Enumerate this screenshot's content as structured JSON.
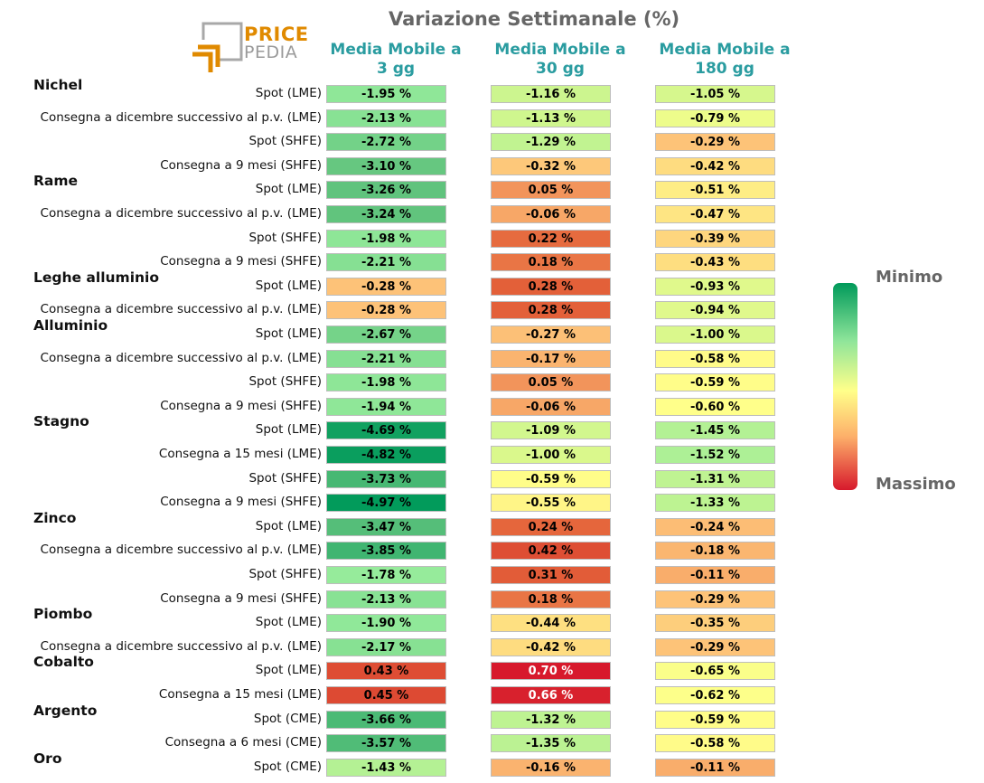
{
  "chart_data": {
    "type": "table",
    "title": "Variazione Settimanale (%)",
    "columns": [
      "Media Mobile a\n3 gg",
      "Media Mobile a\n30 gg",
      "Media Mobile a\n180 gg"
    ],
    "color_scale": {
      "min_label": "Minimo",
      "max_label": "Massimo",
      "low_color": "#009a5a",
      "mid_color": "#ffff8a",
      "high_color": "#d7192c"
    },
    "groups": [
      {
        "name": "Nichel",
        "rows": [
          {
            "label": "Spot (LME)",
            "values": [
              -1.95,
              -1.16,
              -1.05
            ]
          },
          {
            "label": "Consegna a dicembre successivo al p.v. (LME)",
            "values": [
              -2.13,
              -1.13,
              -0.79
            ]
          },
          {
            "label": "Spot (SHFE)",
            "values": [
              -2.72,
              -1.29,
              -0.29
            ]
          },
          {
            "label": "Consegna a 9 mesi (SHFE)",
            "values": [
              -3.1,
              -0.32,
              -0.42
            ]
          }
        ]
      },
      {
        "name": "Rame",
        "rows": [
          {
            "label": "Spot (LME)",
            "values": [
              -3.26,
              0.05,
              -0.51
            ]
          },
          {
            "label": "Consegna a dicembre successivo al p.v. (LME)",
            "values": [
              -3.24,
              -0.06,
              -0.47
            ]
          },
          {
            "label": "Spot (SHFE)",
            "values": [
              -1.98,
              0.22,
              -0.39
            ]
          },
          {
            "label": "Consegna a 9 mesi (SHFE)",
            "values": [
              -2.21,
              0.18,
              -0.43
            ]
          }
        ]
      },
      {
        "name": "Leghe alluminio",
        "rows": [
          {
            "label": "Spot (LME)",
            "values": [
              -0.28,
              0.28,
              -0.93
            ]
          },
          {
            "label": "Consegna a dicembre successivo al p.v. (LME)",
            "values": [
              -0.28,
              0.28,
              -0.94
            ]
          }
        ]
      },
      {
        "name": "Alluminio",
        "rows": [
          {
            "label": "Spot (LME)",
            "values": [
              -2.67,
              -0.27,
              -1.0
            ]
          },
          {
            "label": "Consegna a dicembre successivo al p.v. (LME)",
            "values": [
              -2.21,
              -0.17,
              -0.58
            ]
          },
          {
            "label": "Spot (SHFE)",
            "values": [
              -1.98,
              0.05,
              -0.59
            ]
          },
          {
            "label": "Consegna a 9 mesi (SHFE)",
            "values": [
              -1.94,
              -0.06,
              -0.6
            ]
          }
        ]
      },
      {
        "name": "Stagno",
        "rows": [
          {
            "label": "Spot (LME)",
            "values": [
              -4.69,
              -1.09,
              -1.45
            ]
          },
          {
            "label": "Consegna a 15 mesi (LME)",
            "values": [
              -4.82,
              -1.0,
              -1.52
            ]
          },
          {
            "label": "Spot (SHFE)",
            "values": [
              -3.73,
              -0.59,
              -1.31
            ]
          },
          {
            "label": "Consegna a 9 mesi (SHFE)",
            "values": [
              -4.97,
              -0.55,
              -1.33
            ]
          }
        ]
      },
      {
        "name": "Zinco",
        "rows": [
          {
            "label": "Spot (LME)",
            "values": [
              -3.47,
              0.24,
              -0.24
            ]
          },
          {
            "label": "Consegna a dicembre successivo al p.v. (LME)",
            "values": [
              -3.85,
              0.42,
              -0.18
            ]
          },
          {
            "label": "Spot (SHFE)",
            "values": [
              -1.78,
              0.31,
              -0.11
            ]
          },
          {
            "label": "Consegna a 9 mesi (SHFE)",
            "values": [
              -2.13,
              0.18,
              -0.29
            ]
          }
        ]
      },
      {
        "name": "Piombo",
        "rows": [
          {
            "label": "Spot (LME)",
            "values": [
              -1.9,
              -0.44,
              -0.35
            ]
          },
          {
            "label": "Consegna a dicembre successivo al p.v. (LME)",
            "values": [
              -2.17,
              -0.42,
              -0.29
            ]
          }
        ]
      },
      {
        "name": "Cobalto",
        "rows": [
          {
            "label": "Spot (LME)",
            "values": [
              0.43,
              0.7,
              -0.65
            ]
          },
          {
            "label": "Consegna a 15 mesi (LME)",
            "values": [
              0.45,
              0.66,
              -0.62
            ]
          }
        ]
      },
      {
        "name": "Argento",
        "rows": [
          {
            "label": "Spot (CME)",
            "values": [
              -3.66,
              -1.32,
              -0.59
            ]
          },
          {
            "label": "Consegna a 6 mesi (CME)",
            "values": [
              -3.57,
              -1.35,
              -0.58
            ]
          }
        ]
      },
      {
        "name": "Oro",
        "rows": [
          {
            "label": "Spot (CME)",
            "values": [
              -1.43,
              -0.16,
              -0.11
            ]
          }
        ]
      }
    ]
  },
  "logo": {
    "line1": "PRICE",
    "line2": "PEDIA",
    "orange": "#e08a00",
    "gray": "#9a9a9a"
  }
}
